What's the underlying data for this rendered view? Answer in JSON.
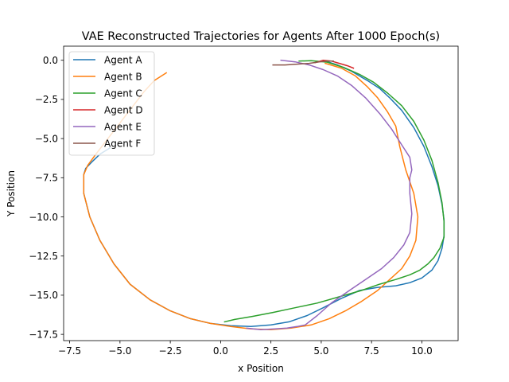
{
  "chart_data": {
    "type": "line",
    "title": "VAE Reconstructed Trajectories for Agents After 1000 Epoch(s)",
    "xlabel": "x Position",
    "ylabel": "Y Position",
    "xlim": [
      -7.8,
      11.8
    ],
    "ylim": [
      -17.9,
      0.9
    ],
    "xticks": [
      -7.5,
      -5.0,
      -2.5,
      0.0,
      2.5,
      5.0,
      7.5,
      10.0
    ],
    "xtick_labels": [
      "−7.5",
      "−5.0",
      "−2.5",
      "0.0",
      "2.5",
      "5.0",
      "7.5",
      "10.0"
    ],
    "yticks": [
      0.0,
      -2.5,
      -5.0,
      -7.5,
      -10.0,
      -12.5,
      -15.0,
      -17.5
    ],
    "ytick_labels": [
      "0.0",
      "−2.5",
      "−5.0",
      "−7.5",
      "−10.0",
      "−12.5",
      "−15.0",
      "−17.5"
    ],
    "grid": false,
    "legend_position": "upper-left",
    "series": [
      {
        "name": "Agent A",
        "color": "#1f77b4",
        "x": [
          5.2,
          5.8,
          6.5,
          7.3,
          7.9,
          8.4,
          9.0,
          9.6,
          10.1,
          10.5,
          10.8,
          11.0,
          11.1,
          11.1,
          11.0,
          10.8,
          10.5,
          10.0,
          9.4,
          8.7,
          7.8,
          6.9,
          6.0,
          5.1,
          4.3,
          3.4,
          2.5,
          1.5,
          0.5,
          -0.5,
          -1.5,
          -2.5,
          -3.5,
          -4.5,
          -5.3,
          -6.0,
          -6.5,
          -6.8,
          -6.8,
          -6.7,
          -6.4,
          -6.0,
          -5.5
        ],
        "y": [
          -0.05,
          -0.3,
          -0.7,
          -1.3,
          -1.8,
          -2.4,
          -3.2,
          -4.3,
          -5.5,
          -6.8,
          -8.0,
          -9.2,
          -10.2,
          -11.2,
          -12.0,
          -12.8,
          -13.4,
          -13.9,
          -14.2,
          -14.4,
          -14.5,
          -14.7,
          -15.2,
          -15.8,
          -16.3,
          -16.7,
          -16.9,
          -17.0,
          -16.95,
          -16.8,
          -16.5,
          -16.0,
          -15.3,
          -14.3,
          -13.0,
          -11.5,
          -10.0,
          -8.5,
          -7.3,
          -6.9,
          -6.5,
          -6.0,
          -5.6
        ]
      },
      {
        "name": "Agent B",
        "color": "#ff7f0e",
        "x": [
          5.2,
          6.0,
          6.7,
          7.3,
          7.8,
          8.3,
          8.7,
          8.9,
          9.2,
          9.6,
          9.8,
          9.7,
          9.4,
          9.0,
          8.4,
          7.8,
          7.0,
          6.2,
          5.4,
          4.5,
          3.5,
          2.5,
          1.5,
          0.5,
          -0.5,
          -1.5,
          -2.5,
          -3.5,
          -4.5,
          -5.3,
          -6.0,
          -6.5,
          -6.8,
          -6.8,
          -6.6,
          -6.2,
          -5.6,
          -5.0,
          -4.4,
          -3.8,
          -3.3,
          -2.7
        ],
        "y": [
          -0.2,
          -0.5,
          -1.0,
          -1.7,
          -2.4,
          -3.3,
          -4.2,
          -5.5,
          -7.0,
          -8.5,
          -10.0,
          -11.5,
          -12.5,
          -13.3,
          -14.0,
          -14.7,
          -15.4,
          -16.0,
          -16.5,
          -16.9,
          -17.1,
          -17.2,
          -17.15,
          -17.0,
          -16.8,
          -16.5,
          -16.0,
          -15.3,
          -14.3,
          -13.0,
          -11.5,
          -10.0,
          -8.5,
          -7.3,
          -6.7,
          -6.0,
          -5.0,
          -4.0,
          -3.0,
          -2.0,
          -1.3,
          -0.8
        ]
      },
      {
        "name": "Agent C",
        "color": "#2ca02c",
        "x": [
          3.9,
          4.5,
          5.3,
          6.1,
          6.9,
          7.6,
          8.3,
          9.0,
          9.6,
          10.1,
          10.5,
          10.8,
          11.0,
          11.1,
          11.1,
          10.9,
          10.6,
          10.3,
          9.9,
          9.4,
          8.7,
          7.9,
          7.0,
          5.9,
          4.8,
          3.7,
          2.6,
          1.6,
          0.7,
          0.2
        ],
        "y": [
          -0.05,
          -0.03,
          -0.12,
          -0.45,
          -0.9,
          -1.4,
          -2.1,
          -2.9,
          -3.9,
          -5.1,
          -6.4,
          -7.8,
          -9.1,
          -10.3,
          -11.3,
          -12.0,
          -12.6,
          -13.0,
          -13.4,
          -13.7,
          -14.0,
          -14.3,
          -14.7,
          -15.1,
          -15.5,
          -15.8,
          -16.1,
          -16.35,
          -16.55,
          -16.7
        ]
      },
      {
        "name": "Agent D",
        "color": "#d62728",
        "x": [
          4.7,
          5.1,
          5.5,
          5.9,
          6.3,
          6.6
        ],
        "y": [
          -0.15,
          0.0,
          -0.05,
          -0.2,
          -0.35,
          -0.5
        ]
      },
      {
        "name": "Agent E",
        "color": "#9467bd",
        "x": [
          3.0,
          3.7,
          4.4,
          5.1,
          5.8,
          6.5,
          7.2,
          7.9,
          8.5,
          9.0,
          9.4,
          9.5,
          9.4,
          9.4,
          9.5,
          9.4,
          9.1,
          8.6,
          8.0,
          7.2,
          6.4,
          5.5,
          4.8,
          4.2,
          3.8,
          3.3,
          2.7,
          2.0,
          1.3
        ],
        "y": [
          0.0,
          -0.1,
          -0.3,
          -0.6,
          -1.0,
          -1.6,
          -2.4,
          -3.4,
          -4.4,
          -5.4,
          -6.2,
          -7.0,
          -7.5,
          -8.5,
          -9.8,
          -11.0,
          -11.8,
          -12.6,
          -13.3,
          -14.0,
          -14.7,
          -15.5,
          -16.3,
          -16.9,
          -17.0,
          -17.1,
          -17.15,
          -17.2,
          -17.1
        ]
      },
      {
        "name": "Agent F",
        "color": "#8c564b",
        "x": [
          2.6,
          3.2,
          3.8,
          4.4,
          4.9,
          5.3,
          5.6
        ],
        "y": [
          -0.3,
          -0.3,
          -0.25,
          -0.2,
          -0.1,
          -0.05,
          -0.05
        ]
      }
    ]
  }
}
